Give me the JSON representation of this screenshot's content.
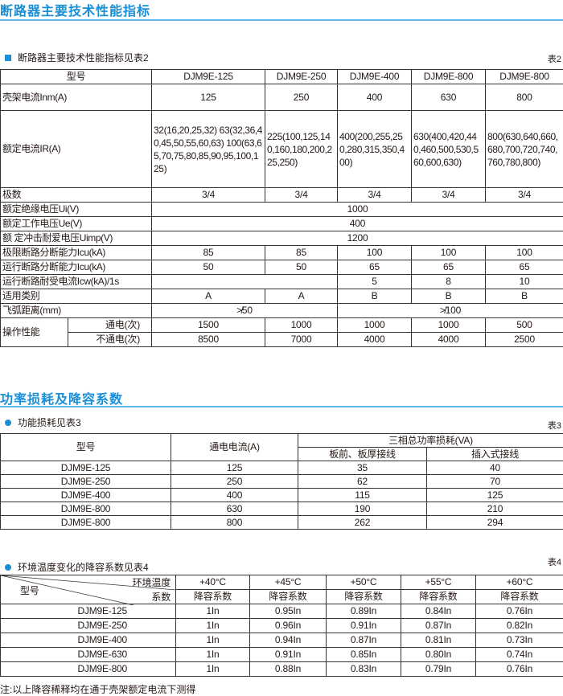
{
  "section1": {
    "title": "断路器主要技术性能指标",
    "subtitle": "断路器主要技术性能指标见表2",
    "table_no": "表2"
  },
  "table2": {
    "header": [
      "型号",
      "DJM9E-125",
      "DJM9E-250",
      "DJM9E-400",
      "DJM9E-800",
      "DJM9E-800"
    ],
    "frame_current": {
      "label": "壳架电流Inm(A)",
      "values": [
        "125",
        "250",
        "400",
        "630",
        "800"
      ]
    },
    "rated_current": {
      "label": "额定电流IR(A)",
      "values": [
        "32(16,20,25,32) 63(32,36,40,45,50,55,60,63) 100(63,65,70,75,80,85,90,95,100,125)",
        "225(100,125,140,160,180,200,225,250)",
        "400(200,255,250,280,315,350,400)",
        "630(400,420,440,460,500,530,560,600,630)",
        "800(630,640,660,680,700,720,740,760,780,800)"
      ]
    },
    "poles": {
      "label": "极数",
      "values": [
        "3/4",
        "3/4",
        "3/4",
        "3/4",
        "3/4"
      ]
    },
    "ui": {
      "label": "额定绝缘电压Ui(V)",
      "value": "1000"
    },
    "ue": {
      "label": "额定工作电压Ue(V)",
      "value": "400"
    },
    "uimp": {
      "label": "额 定冲击耐爱电压Uimp(V)",
      "value": "1200"
    },
    "icu": {
      "label": "极限断路分断能力Icu(kA)",
      "values": [
        "85",
        "85",
        "100",
        "100",
        "100"
      ]
    },
    "ics": {
      "label": "运行断路分断能力Icu(kA)",
      "values": [
        "50",
        "50",
        "65",
        "65",
        "65"
      ]
    },
    "icw": {
      "label": "运行断路耐受电流Icw(kA)/1s",
      "values": [
        "5",
        "8",
        "10"
      ]
    },
    "category": {
      "label": "适用类别",
      "values": [
        "A",
        "A",
        "B",
        "B",
        "B"
      ]
    },
    "arc": {
      "label": "飞弧距离(mm)",
      "values": [
        "≯50",
        "≯100"
      ]
    },
    "operation": {
      "label": "操作性能",
      "energized": {
        "label": "通电(次)",
        "values": [
          "1500",
          "1000",
          "1000",
          "1000",
          "500"
        ]
      },
      "deenergized": {
        "label": "不通电(次)",
        "values": [
          "8500",
          "7000",
          "4000",
          "4000",
          "2500"
        ]
      }
    }
  },
  "section2": {
    "title": "功率损耗及降容系数",
    "subtitle": "功能损耗见表3",
    "table_no": "表3"
  },
  "table3": {
    "h_model": "型号",
    "h_current": "通电电流(A)",
    "h_loss": "三相总功率损耗(VA)",
    "h_front": "板前、板厚接线",
    "h_plugin": "插入式接线",
    "rows": [
      [
        "DJM9E-125",
        "125",
        "35",
        "40"
      ],
      [
        "DJM9E-250",
        "250",
        "62",
        "70"
      ],
      [
        "DJM9E-400",
        "400",
        "115",
        "125"
      ],
      [
        "DJM9E-800",
        "630",
        "190",
        "210"
      ],
      [
        "DJM9E-800",
        "800",
        "262",
        "294"
      ]
    ]
  },
  "section3": {
    "subtitle": "环境温度变化的降容系数见表4",
    "table_no": "表4"
  },
  "table4": {
    "h_temp": "环境温度",
    "h_coef": "系数",
    "h_model": "型号",
    "temps": [
      "+40°C",
      "+45°C",
      "+50°C",
      "+55°C",
      "+60°C"
    ],
    "sub": [
      "降容系数",
      "降容系数",
      "降容系数",
      "降容系数",
      "降容系数"
    ],
    "rows": [
      [
        "DJM9E-125",
        "1In",
        "0.95In",
        "0.89In",
        "0.84In",
        "0.76In"
      ],
      [
        "DJM9E-250",
        "1In",
        "0.96In",
        "0.91In",
        "0.87In",
        "0.82In"
      ],
      [
        "DJM9E-400",
        "1In",
        "0.94In",
        "0.87In",
        "0.81In",
        "0.73In"
      ],
      [
        "DJM9E-630",
        "1In",
        "0.91In",
        "0.85In",
        "0.80In",
        "0.74In"
      ],
      [
        "DJM9E-800",
        "1In",
        "0.88In",
        "0.83In",
        "0.79In",
        "0.76In"
      ]
    ]
  },
  "note": "注:以上降容稀释均在通于壳架额定电流下测得",
  "colors": {
    "accent": "#1a8fd6",
    "rule": "#5fb6ea"
  }
}
